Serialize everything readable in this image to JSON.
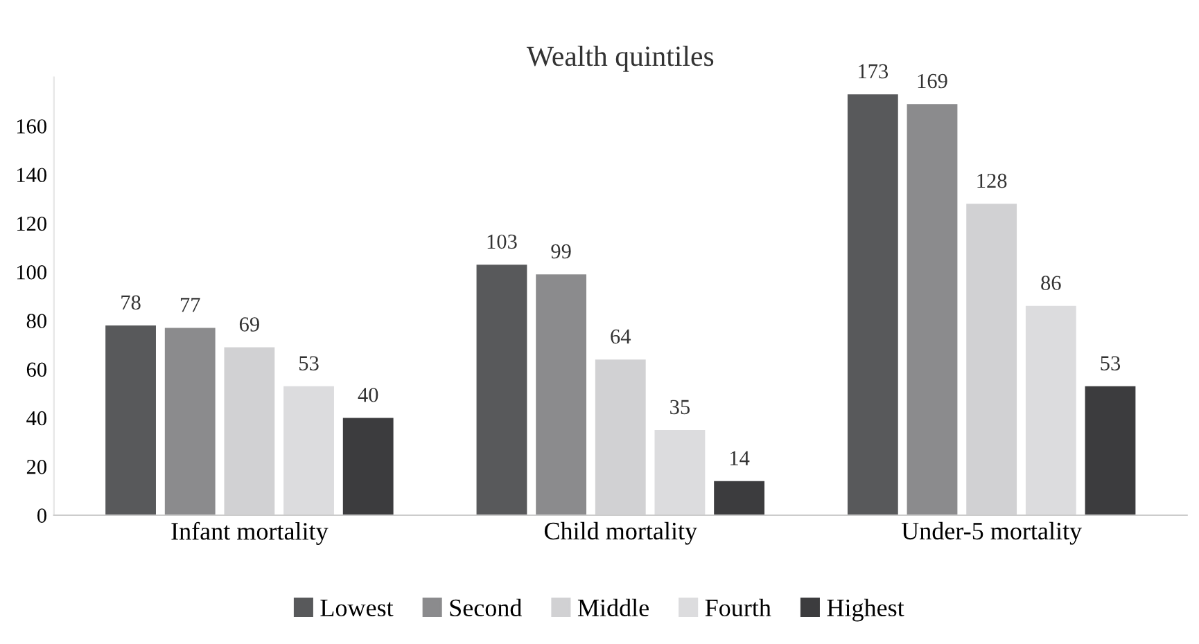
{
  "chart_data": {
    "type": "bar",
    "title": "Wealth quintiles",
    "categories": [
      "Infant mortality",
      "Child mortality",
      "Under-5 mortality"
    ],
    "series": [
      {
        "name": "Lowest",
        "color": "#58595b",
        "values": [
          78,
          103,
          173
        ]
      },
      {
        "name": "Second",
        "color": "#8b8b8d",
        "values": [
          77,
          99,
          169
        ]
      },
      {
        "name": "Middle",
        "color": "#d1d1d3",
        "values": [
          69,
          64,
          128
        ]
      },
      {
        "name": "Fourth",
        "color": "#dcdcde",
        "values": [
          53,
          35,
          86
        ]
      },
      {
        "name": "Highest",
        "color": "#3c3c3e",
        "values": [
          40,
          14,
          53
        ]
      }
    ],
    "ylim": [
      0,
      180
    ],
    "yticks": [
      0,
      20,
      40,
      60,
      80,
      100,
      120,
      140,
      160
    ],
    "data_labels": true,
    "legend": "bottom",
    "grid": false
  }
}
